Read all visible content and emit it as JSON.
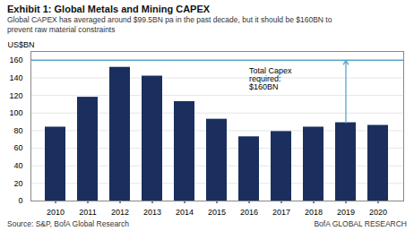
{
  "chart_data": {
    "type": "bar",
    "title": "Exhibit 1: Global Metals and Mining CAPEX",
    "subtitle": [
      "Global CAPEX has averaged around $99.5BN pa in the past decade, but it should be $160BN to",
      "prevent raw material constraints"
    ],
    "ylabel": "US$BN",
    "categories": [
      "2010",
      "2011",
      "2012",
      "2013",
      "2014",
      "2015",
      "2016",
      "2017",
      "2018",
      "2019",
      "2020"
    ],
    "values": [
      84,
      118,
      152,
      142,
      113,
      93,
      73,
      79,
      84,
      89,
      86
    ],
    "color": "#1b2f5e",
    "ylim": [
      0,
      170
    ],
    "yticks": [
      0,
      20,
      40,
      60,
      80,
      100,
      120,
      140,
      160
    ],
    "grid": true,
    "reference_line": {
      "y": 160,
      "color": "#5aa8c8",
      "label": "Total Capex\nrequired:\n$160BN",
      "arrow_from": "2019"
    },
    "source": "Source: S&P, BofA Global Research",
    "credit": "BofA GLOBAL RESEARCH"
  }
}
